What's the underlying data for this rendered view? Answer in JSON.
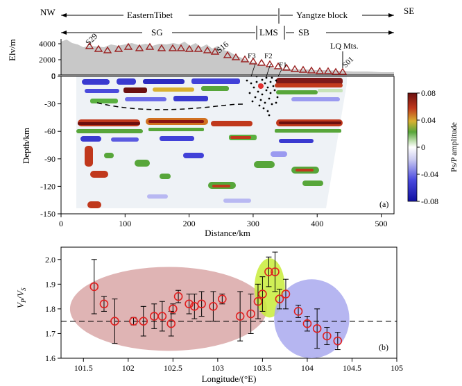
{
  "header": {
    "nw": "NW",
    "se": "SE",
    "region_left": "EasternTibet",
    "region_right": "Yangtze block",
    "sg": "SG",
    "lms": "LMS",
    "sb": "SB"
  },
  "labels": {
    "s29": "S29",
    "s16": "S16",
    "f3": "F3",
    "f2": "F2",
    "f1": "F1",
    "lq": "LQ Mts.",
    "s01": "S01",
    "panel_a": "(a)",
    "panel_b": "(b)"
  },
  "colorbar": {
    "label": "Ps/P amplitude",
    "ticks": [
      "0.08",
      "0.04",
      "0",
      "-0.04",
      "-0.08"
    ]
  },
  "chart_data": [
    {
      "type": "area",
      "panel": "a-top",
      "ylabel": "Elv/m",
      "ylim": [
        0,
        5000
      ],
      "yticks": [
        "4000",
        "2000",
        "0"
      ],
      "stations_count": 29
    },
    {
      "type": "heatmap",
      "panel": "a",
      "xlabel": "Distance/km",
      "ylabel": "Depth/km",
      "xlim": [
        0,
        520
      ],
      "ylim": [
        -150,
        0
      ],
      "xticks": [
        "0",
        "100",
        "200",
        "300",
        "400",
        "500"
      ],
      "yticks": [
        "0",
        "-30",
        "-60",
        "-90",
        "-120",
        "-150"
      ],
      "colorbar_range": [
        -0.08,
        0.08
      ]
    },
    {
      "type": "scatter",
      "panel": "b",
      "xlabel": "Longitude/(°E)",
      "ylabel_main": "V",
      "ylabel_sub1": "P",
      "ylabel_sep": "/",
      "ylabel_sub2": "S",
      "xlim": [
        101.25,
        105
      ],
      "ylim": [
        1.6,
        2.05
      ],
      "xticks": [
        "101.5",
        "102",
        "102.5",
        "103",
        "103.5",
        "104",
        "104.5",
        "105"
      ],
      "yticks": [
        "1.6",
        "1.7",
        "1.8",
        "1.9",
        "2.0"
      ],
      "reference_line": 1.75,
      "points": [
        {
          "x": 101.62,
          "y": 1.89,
          "err": 0.11
        },
        {
          "x": 101.73,
          "y": 1.82,
          "err": 0.03
        },
        {
          "x": 101.85,
          "y": 1.75,
          "err": 0.09
        },
        {
          "x": 102.06,
          "y": 1.75,
          "err": 0.015
        },
        {
          "x": 102.17,
          "y": 1.75,
          "err": 0.06
        },
        {
          "x": 102.29,
          "y": 1.77,
          "err": 0.05
        },
        {
          "x": 102.38,
          "y": 1.77,
          "err": 0.06
        },
        {
          "x": 102.48,
          "y": 1.74,
          "err": 0.05
        },
        {
          "x": 102.5,
          "y": 1.8,
          "err": 0.02
        },
        {
          "x": 102.56,
          "y": 1.85,
          "err": 0.025
        },
        {
          "x": 102.68,
          "y": 1.82,
          "err": 0.04
        },
        {
          "x": 102.74,
          "y": 1.81,
          "err": 0.05
        },
        {
          "x": 102.82,
          "y": 1.82,
          "err": 0.05
        },
        {
          "x": 102.95,
          "y": 1.81,
          "err": 0.06
        },
        {
          "x": 103.05,
          "y": 1.84,
          "err": 0.02
        },
        {
          "x": 103.25,
          "y": 1.77,
          "err": 0.1
        },
        {
          "x": 103.37,
          "y": 1.78,
          "err": 0.08
        },
        {
          "x": 103.45,
          "y": 1.83,
          "err": 0.07
        },
        {
          "x": 103.5,
          "y": 1.86,
          "err": 0.07
        },
        {
          "x": 103.57,
          "y": 1.95,
          "err": 0.06
        },
        {
          "x": 103.64,
          "y": 1.95,
          "err": 0.08
        },
        {
          "x": 103.69,
          "y": 1.84,
          "err": 0.04
        },
        {
          "x": 103.76,
          "y": 1.86,
          "err": 0.06
        },
        {
          "x": 103.9,
          "y": 1.79,
          "err": 0.025
        },
        {
          "x": 104.0,
          "y": 1.74,
          "err": 0.03
        },
        {
          "x": 104.11,
          "y": 1.72,
          "err": 0.08
        },
        {
          "x": 104.22,
          "y": 1.69,
          "err": 0.035
        },
        {
          "x": 104.34,
          "y": 1.67,
          "err": 0.035
        }
      ],
      "clusters": [
        {
          "color": "#d9a7a7",
          "cx": 102.45,
          "cy": 1.8,
          "rx": 1.1,
          "ry": 0.17
        },
        {
          "color": "#c8ec3a",
          "cx": 103.58,
          "cy": 1.885,
          "rx": 0.17,
          "ry": 0.12
        },
        {
          "color": "#a9a9ee",
          "cx": 104.05,
          "cy": 1.76,
          "rx": 0.42,
          "ry": 0.16
        }
      ]
    }
  ]
}
